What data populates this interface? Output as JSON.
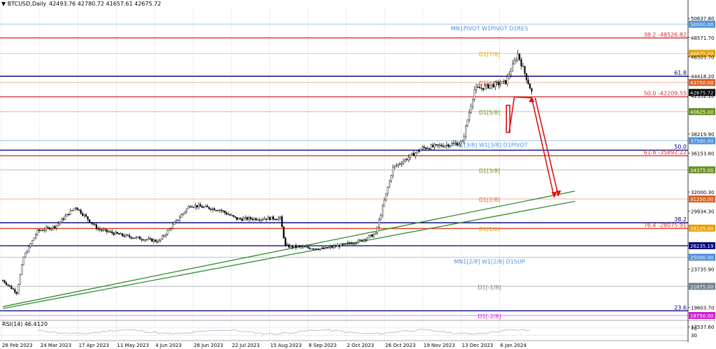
{
  "header": {
    "symbol": "BTCUSD,Daily",
    "ohlc": "42493.76 42780.72 41657.61 42675.72"
  },
  "rsi_label": "RSI(14) 46.4120",
  "chart_data": {
    "type": "candlestick",
    "ylim": [
      18300,
      51700
    ],
    "y_ticks": [
      "50637.80",
      "48571.70",
      "46505.70",
      "44418.20",
      "42352.10",
      "38219.90",
      "36153.80",
      "32000.30",
      "29934.30",
      "23735.90",
      "19603.70",
      "17537.60"
    ],
    "x_ticks": [
      "28 Feb 2023",
      "24 Mar 2023",
      "17 Apr 2023",
      "11 May 2023",
      "4 Jun 2023",
      "28 Jun 2023",
      "22 Jul 2023",
      "15 Aug 2023",
      "8 Sep 2023",
      "2 Oct 2023",
      "26 Oct 2023",
      "19 Nov 2023",
      "13 Dec 2023",
      "6 Jan 2024"
    ],
    "rsi_ticks": [
      "70",
      "30"
    ],
    "current_price": {
      "value": 42675.72,
      "label": "42675.72"
    },
    "levels": [
      {
        "price": 50000,
        "label": "MN1PIVOT W1PIVOT D1RES",
        "badge": "50000.00",
        "color": "#4a8fd8",
        "kind": "murrey"
      },
      {
        "price": 48526.82,
        "label": "38.2 -48526.82",
        "color": "#d32f2f",
        "kind": "fib"
      },
      {
        "price": 46875,
        "label": "D1[7/8]",
        "badge": "46875.00",
        "color": "#e6a000",
        "kind": "murrey"
      },
      {
        "price": 44418,
        "label": "61.8",
        "color": "#000080",
        "kind": "fib"
      },
      {
        "price": 43750,
        "label": "D1[6/8]",
        "badge": "43750.00",
        "color": "#e06020",
        "kind": "murrey"
      },
      {
        "price": 42209.55,
        "label": "50.0 -42209.55",
        "color": "#d32f2f",
        "kind": "fib"
      },
      {
        "price": 40625,
        "label": "D1[5/8]",
        "badge": "40625.00",
        "color": "#6b8e23",
        "kind": "murrey"
      },
      {
        "price": 37500,
        "label": "MN1[3/8] W1[3/8] D1PIVOT",
        "badge": "37500.00",
        "color": "#4a8fd8",
        "kind": "murrey"
      },
      {
        "price": 36480,
        "label": "50.0",
        "color": "#000080",
        "kind": "fib"
      },
      {
        "price": 35892.22,
        "label": "61.8 -35892.22",
        "color": "#d32f2f",
        "kind": "fib"
      },
      {
        "price": 34375,
        "label": "D1[3/8]",
        "badge": "34375.00",
        "color": "#6b8e23",
        "kind": "murrey"
      },
      {
        "price": 31250,
        "label": "D1[2/8]",
        "badge": "31250.00",
        "color": "#e06020",
        "kind": "murrey"
      },
      {
        "price": 28700,
        "label": "38.2",
        "color": "#000080",
        "kind": "fib"
      },
      {
        "price": 28075.91,
        "label": "76.4 -28075.91",
        "color": "#d32f2f",
        "kind": "fib"
      },
      {
        "price": 28125,
        "label": "D1[1/8]",
        "badge": "28125.00",
        "color": "#e6a000",
        "kind": "murrey"
      },
      {
        "price": 26235.19,
        "label": "",
        "badge": "26235.19",
        "color": "#000080",
        "kind": "fib"
      },
      {
        "price": 25000,
        "label": "MN1[2/8] W1[2/8] D1SUP",
        "badge": "25000.00",
        "color": "#4a8fd8",
        "kind": "murrey"
      },
      {
        "price": 21875,
        "label": "D1[-1/8]",
        "badge": "21875.00",
        "color": "#708090",
        "kind": "murrey"
      },
      {
        "price": 19250,
        "label": "23.6",
        "color": "#000080",
        "kind": "fib"
      },
      {
        "price": 18750,
        "label": "D1[-2/8]",
        "badge": "18750.00",
        "color": "#d020d0",
        "kind": "murrey"
      }
    ],
    "trendlines": [
      {
        "from": {
          "bar": 0,
          "price": 19700
        },
        "to": {
          "bar": 330,
          "price": 32100
        },
        "color": "#2e8b2e"
      },
      {
        "from": {
          "bar": 0,
          "price": 19500
        },
        "to": {
          "bar": 330,
          "price": 31000
        },
        "color": "#2e8b2e"
      }
    ],
    "forecast_path": {
      "bars": [
        292,
        292,
        295,
        305,
        318
      ],
      "prices": [
        41300,
        38400,
        42200,
        42100,
        31400
      ],
      "color": "#e01010"
    }
  }
}
